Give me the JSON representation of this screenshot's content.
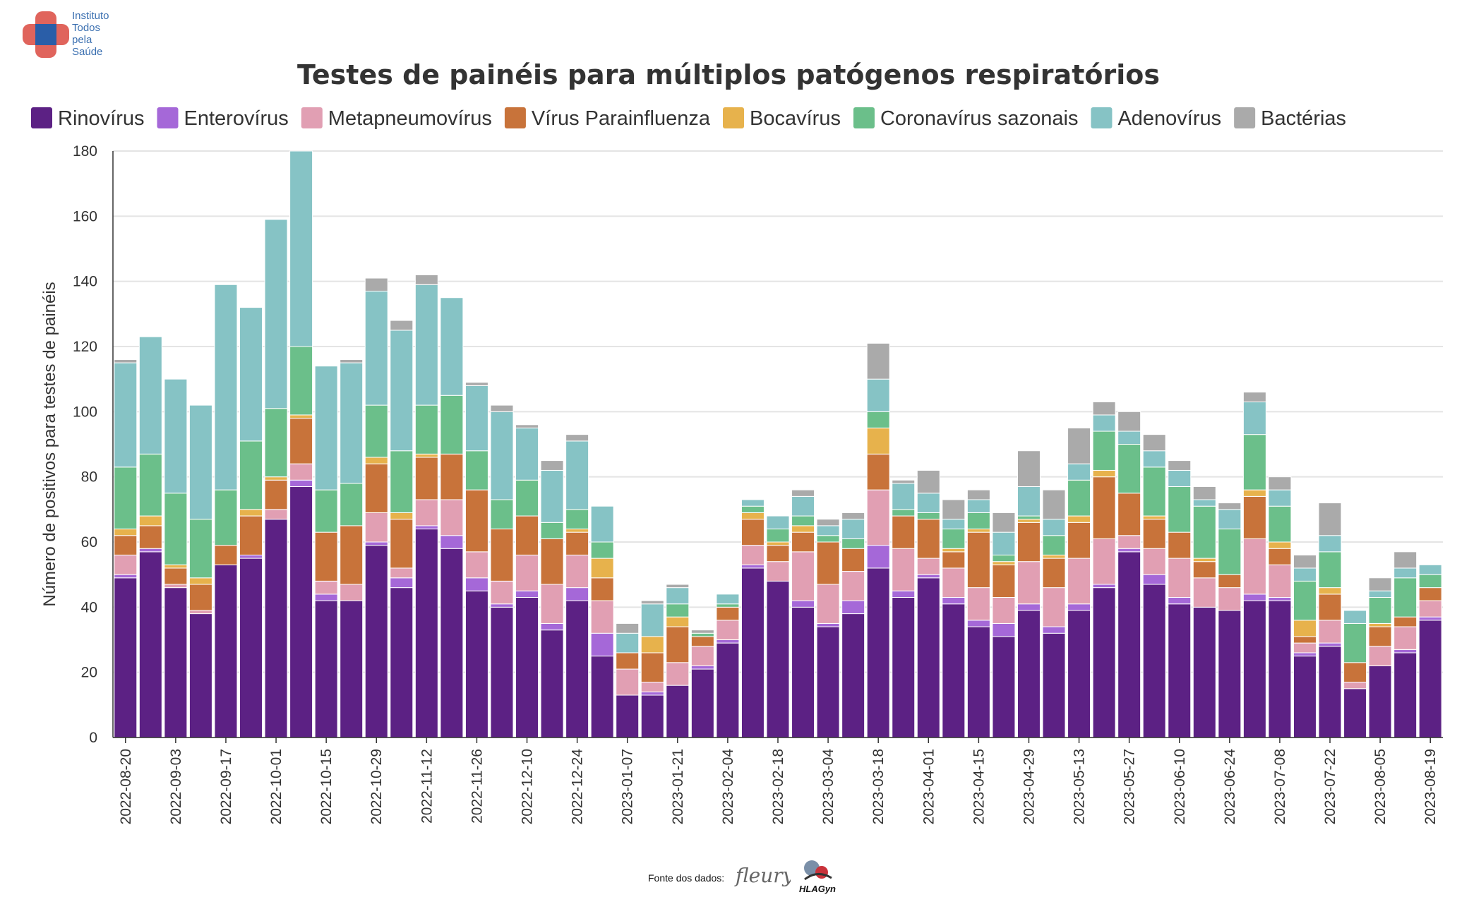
{
  "brand": {
    "logo_lines": [
      "Instituto",
      "Todos",
      "pela",
      "Saúde"
    ],
    "colors": {
      "red": "#e0645c",
      "blue": "#2a5ea8"
    }
  },
  "footer": {
    "source_label": "Fonte dos dados:",
    "logo1": "fleury",
    "logo2": "HLAGyn"
  },
  "chart_data": {
    "type": "bar",
    "stacked": true,
    "title": "Testes de painéis para múltiplos patógenos respiratórios",
    "xlabel": "",
    "ylabel": "Número de positivos para testes de painéis",
    "ylim": [
      0,
      180
    ],
    "yticks": [
      0,
      20,
      40,
      60,
      80,
      100,
      120,
      140,
      160,
      180
    ],
    "grid": true,
    "legend_position": "top",
    "categories": [
      "2022-08-20",
      "2022-08-27",
      "2022-09-03",
      "2022-09-10",
      "2022-09-17",
      "2022-09-24",
      "2022-10-01",
      "2022-10-08",
      "2022-10-15",
      "2022-10-22",
      "2022-10-29",
      "2022-11-05",
      "2022-11-12",
      "2022-11-19",
      "2022-11-26",
      "2022-12-03",
      "2022-12-10",
      "2022-12-17",
      "2022-12-24",
      "2022-12-31",
      "2023-01-07",
      "2023-01-14",
      "2023-01-21",
      "2023-01-28",
      "2023-02-04",
      "2023-02-11",
      "2023-02-18",
      "2023-02-25",
      "2023-03-04",
      "2023-03-11",
      "2023-03-18",
      "2023-03-25",
      "2023-04-01",
      "2023-04-08",
      "2023-04-15",
      "2023-04-22",
      "2023-04-29",
      "2023-05-06",
      "2023-05-13",
      "2023-05-20",
      "2023-05-27",
      "2023-06-03",
      "2023-06-10",
      "2023-06-17",
      "2023-06-24",
      "2023-07-01",
      "2023-07-08",
      "2023-07-15",
      "2023-07-22",
      "2023-07-29",
      "2023-08-05",
      "2023-08-12",
      "2023-08-19"
    ],
    "tick_labels": [
      "2022-08-20",
      "2022-09-03",
      "2022-09-17",
      "2022-10-01",
      "2022-10-15",
      "2022-10-29",
      "2022-11-12",
      "2022-11-26",
      "2022-12-10",
      "2022-12-24",
      "2023-01-07",
      "2023-01-21",
      "2023-02-04",
      "2023-02-18",
      "2023-03-04",
      "2023-03-18",
      "2023-04-01",
      "2023-04-15",
      "2023-04-29",
      "2023-05-13",
      "2023-05-27",
      "2023-06-10",
      "2023-06-24",
      "2023-07-08",
      "2023-07-22",
      "2023-08-05",
      "2023-08-19"
    ],
    "series": [
      {
        "name": "Rinovírus",
        "color": "#5c2184",
        "values": [
          49,
          57,
          46,
          38,
          53,
          55,
          67,
          77,
          42,
          42,
          59,
          46,
          64,
          58,
          45,
          40,
          43,
          33,
          42,
          25,
          13,
          13,
          16,
          21,
          29,
          52,
          48,
          40,
          34,
          38,
          52,
          43,
          49,
          41,
          34,
          31,
          39,
          32,
          39,
          46,
          57,
          47,
          41,
          40,
          39,
          42,
          42,
          25,
          28,
          15,
          22,
          26,
          36
        ]
      },
      {
        "name": "Enterovírus",
        "color": "#a568d8",
        "values": [
          1,
          1,
          0,
          0,
          0,
          1,
          0,
          2,
          2,
          0,
          1,
          3,
          1,
          4,
          4,
          1,
          2,
          2,
          4,
          7,
          0,
          1,
          0,
          1,
          1,
          1,
          0,
          2,
          1,
          4,
          7,
          2,
          1,
          2,
          2,
          4,
          2,
          2,
          2,
          1,
          1,
          3,
          2,
          0,
          0,
          2,
          1,
          1,
          1,
          0,
          0,
          1,
          1
        ]
      },
      {
        "name": "Metapneumovírus",
        "color": "#e19fb3",
        "values": [
          6,
          0,
          1,
          1,
          0,
          0,
          3,
          5,
          4,
          5,
          9,
          3,
          8,
          11,
          8,
          7,
          11,
          12,
          10,
          10,
          8,
          3,
          7,
          6,
          6,
          6,
          6,
          15,
          12,
          9,
          17,
          13,
          5,
          9,
          10,
          8,
          13,
          12,
          14,
          14,
          4,
          8,
          12,
          9,
          7,
          17,
          10,
          3,
          7,
          2,
          6,
          7,
          5
        ]
      },
      {
        "name": "Vírus Parainfluenza",
        "color": "#c8733a",
        "values": [
          6,
          7,
          5,
          8,
          6,
          12,
          9,
          14,
          15,
          18,
          15,
          15,
          13,
          14,
          19,
          16,
          12,
          14,
          7,
          7,
          5,
          9,
          11,
          3,
          4,
          8,
          5,
          6,
          13,
          7,
          11,
          10,
          12,
          5,
          17,
          10,
          12,
          9,
          11,
          19,
          13,
          9,
          8,
          5,
          4,
          13,
          5,
          2,
          8,
          6,
          6,
          3,
          4
        ]
      },
      {
        "name": "Bocavírus",
        "color": "#e7b24c",
        "values": [
          2,
          3,
          1,
          2,
          0,
          2,
          1,
          1,
          0,
          0,
          2,
          2,
          1,
          0,
          0,
          0,
          0,
          0,
          1,
          6,
          0,
          5,
          3,
          0,
          0,
          2,
          1,
          2,
          0,
          0,
          8,
          0,
          0,
          1,
          1,
          1,
          1,
          1,
          2,
          2,
          0,
          1,
          0,
          1,
          0,
          2,
          2,
          5,
          2,
          0,
          1,
          0,
          0
        ]
      },
      {
        "name": "Coronavírus sazonais",
        "color": "#6bbf8a",
        "values": [
          19,
          19,
          22,
          18,
          17,
          21,
          21,
          21,
          13,
          13,
          16,
          19,
          15,
          18,
          12,
          9,
          11,
          5,
          6,
          5,
          0,
          0,
          4,
          1,
          1,
          2,
          4,
          3,
          2,
          3,
          5,
          2,
          2,
          6,
          5,
          2,
          1,
          6,
          11,
          12,
          15,
          15,
          14,
          16,
          14,
          17,
          11,
          12,
          11,
          12,
          8,
          12,
          4
        ]
      },
      {
        "name": "Adenovírus",
        "color": "#86c3c5",
        "values": [
          32,
          36,
          35,
          35,
          63,
          41,
          58,
          60,
          38,
          37,
          35,
          37,
          37,
          30,
          20,
          27,
          16,
          16,
          21,
          11,
          6,
          10,
          5,
          0,
          3,
          2,
          4,
          6,
          3,
          6,
          10,
          8,
          6,
          3,
          4,
          7,
          9,
          5,
          5,
          5,
          4,
          5,
          5,
          2,
          6,
          10,
          5,
          4,
          5,
          4,
          2,
          3,
          3
        ]
      },
      {
        "name": "Bactérias",
        "color": "#aaaaaa",
        "values": [
          1,
          0,
          0,
          0,
          0,
          0,
          0,
          0,
          0,
          1,
          4,
          3,
          3,
          0,
          1,
          2,
          1,
          3,
          2,
          0,
          3,
          1,
          1,
          1,
          0,
          0,
          0,
          2,
          2,
          2,
          11,
          1,
          7,
          6,
          3,
          6,
          11,
          9,
          11,
          4,
          6,
          5,
          3,
          4,
          2,
          3,
          4,
          4,
          10,
          0,
          4,
          5,
          0
        ]
      }
    ]
  }
}
